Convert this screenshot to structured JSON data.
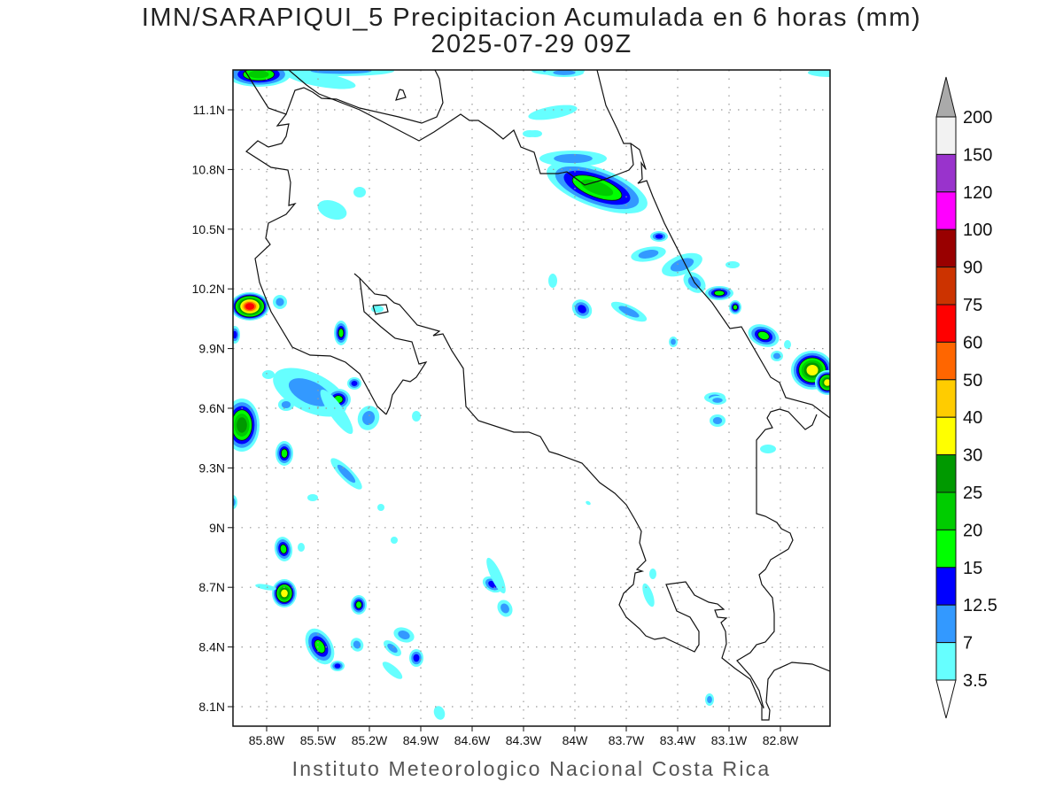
{
  "title": {
    "line1": "IMN/SARAPIQUI_5 Precipitacion Acumulada en 6 horas (mm)",
    "line2": "2025-07-29 09Z"
  },
  "footer": "Instituto Meteorologico Nacional Costa Rica",
  "map": {
    "lon_labels": [
      "85.8W",
      "85.5W",
      "85.2W",
      "84.9W",
      "84.6W",
      "84.3W",
      "84W",
      "83.7W",
      "83.4W",
      "83.1W",
      "82.8W"
    ],
    "lat_labels": [
      "11.1N",
      "10.8N",
      "10.5N",
      "10.2N",
      "9.9N",
      "9.6N",
      "9.3N",
      "9N",
      "8.7N",
      "8.4N",
      "8.1N"
    ]
  },
  "colorbar": {
    "labels": [
      "200",
      "150",
      "120",
      "100",
      "90",
      "75",
      "60",
      "50",
      "40",
      "30",
      "25",
      "20",
      "15",
      "12.5",
      "7",
      "3.5"
    ],
    "colors": [
      "#f2f2f2",
      "#9933cc",
      "#ff00ff",
      "#990000",
      "#cc3300",
      "#ff0000",
      "#ff6600",
      "#ffcc00",
      "#ffff00",
      "#009900",
      "#00cc00",
      "#00ff00",
      "#0000ff",
      "#3399ff",
      "#66ffff"
    ],
    "over_color": "#aaaaaa",
    "under_color": "#ffffff"
  }
}
